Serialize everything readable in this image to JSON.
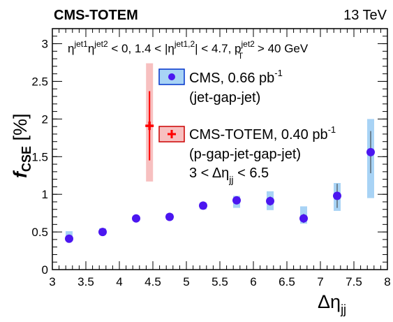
{
  "header": {
    "experiment": "CMS-TOTEM",
    "energy": "13 TeV"
  },
  "selection": {
    "part1": "η",
    "sup1": "jet1",
    "part2": "η",
    "sup2": "jet2",
    "part3": " < 0,  1.4 < |η",
    "sup3": "jet1,2",
    "part4": "| < 4.7, p",
    "sup4": "jet2",
    "sub4": "T",
    "part5": " > 40 GeV"
  },
  "legend": {
    "cms_label": "CMS, 0.66 pb",
    "cms_sup": "-1",
    "cms_topology": "(jet-gap-jet)",
    "totem_label": "CMS-TOTEM, 0.40 pb",
    "totem_sup": "-1",
    "totem_topology": "(p-gap-jet-gap-jet)",
    "range_prefix": "3 < Δη",
    "range_sub": "jj",
    "range_suffix": " < 6.5"
  },
  "axes": {
    "y_main": "f",
    "y_sub": "CSE",
    "y_unit": " [%]",
    "x_main": "Δη",
    "x_sub": "jj"
  },
  "colors": {
    "cms_marker": "#4b16f0",
    "cms_syst": "#a8d3f5",
    "totem_marker": "#ff0000",
    "totem_syst": "#f7c0c0"
  },
  "chart_data": {
    "type": "scatter",
    "xlim": [
      3,
      8
    ],
    "ylim": [
      0,
      3.2
    ],
    "x_ticks": [
      "3",
      "3.5",
      "4",
      "4.5",
      "5",
      "5.5",
      "6",
      "6.5",
      "7",
      "7.5",
      "8"
    ],
    "y_ticks": [
      "0",
      "0.5",
      "1",
      "1.5",
      "2",
      "2.5",
      "3"
    ],
    "legend_position": "upper-center",
    "series": [
      {
        "name": "CMS, 0.66 pb-1 (jet-gap-jet)",
        "marker": "circle",
        "x": [
          3.25,
          3.75,
          4.25,
          4.75,
          5.25,
          5.75,
          6.25,
          6.75,
          7.25,
          7.75
        ],
        "y": [
          0.41,
          0.5,
          0.68,
          0.7,
          0.85,
          0.92,
          0.91,
          0.68,
          0.98,
          1.56
        ],
        "stat": [
          0.02,
          0.03,
          0.02,
          0.02,
          0.03,
          0.05,
          0.06,
          0.06,
          0.16,
          0.28
        ],
        "syst_lo": [
          0.38,
          0.46,
          0.65,
          0.66,
          0.8,
          0.82,
          0.79,
          0.61,
          0.78,
          0.95
        ],
        "syst_hi": [
          0.51,
          0.55,
          0.71,
          0.74,
          0.89,
          0.98,
          1.04,
          0.84,
          1.15,
          2.0
        ]
      },
      {
        "name": "CMS-TOTEM, 0.40 pb-1 (p-gap-jet-gap-jet)",
        "marker": "cross",
        "x": [
          4.45
        ],
        "y": [
          1.91
        ],
        "stat": [
          0.46
        ],
        "syst_lo": [
          1.17
        ],
        "syst_hi": [
          2.74
        ]
      }
    ]
  }
}
